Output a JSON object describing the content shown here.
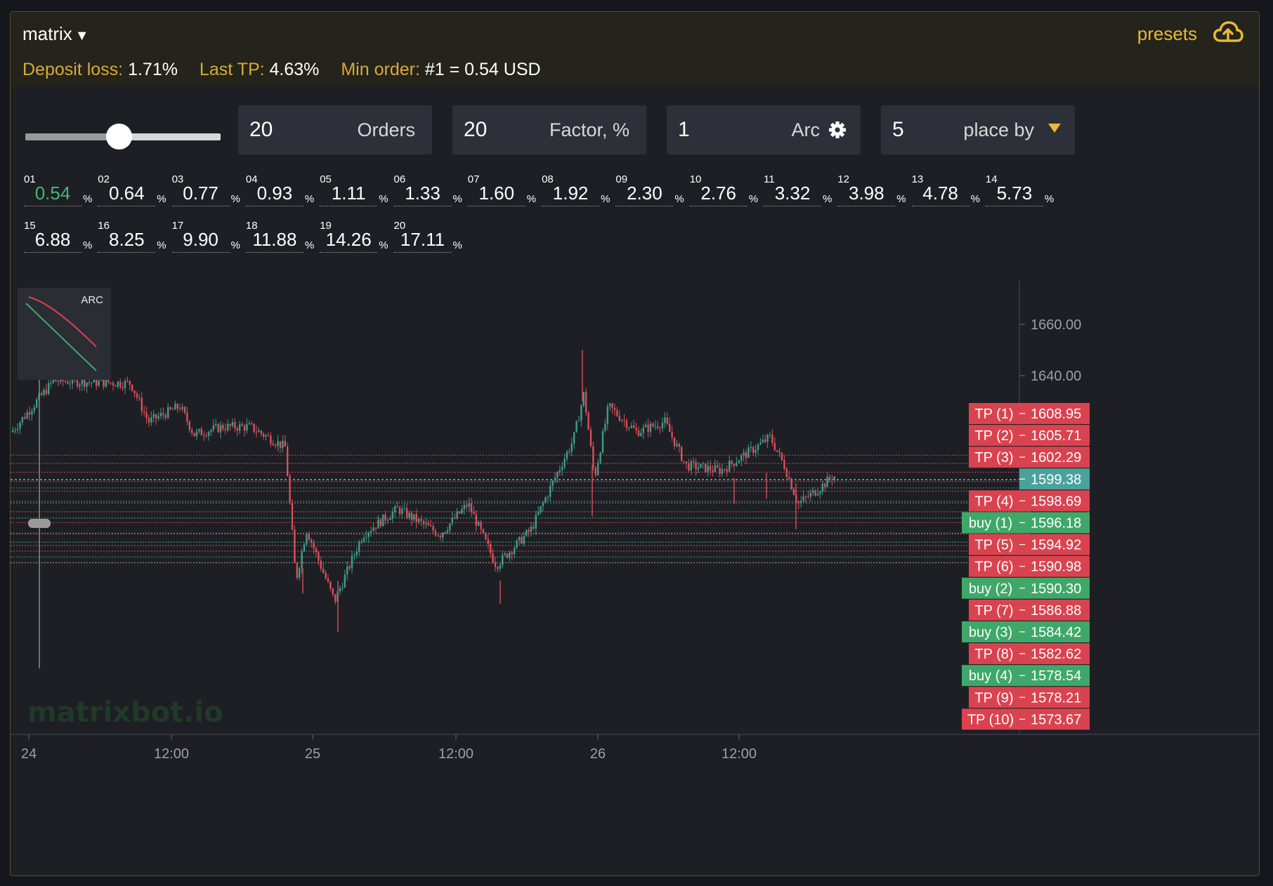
{
  "header": {
    "title": "matrix",
    "presets_label": "presets"
  },
  "stats": {
    "deposit_loss_label": "Deposit loss:",
    "deposit_loss_value": "1.71%",
    "last_tp_label": "Last TP:",
    "last_tp_value": "4.63%",
    "min_order_label": "Min order:",
    "min_order_value": "#1 = 0.54 USD"
  },
  "controls": {
    "slider_fraction": 0.48,
    "orders": {
      "value": "20",
      "label": "Orders"
    },
    "factor": {
      "value": "20",
      "label": "Factor, %"
    },
    "arc": {
      "value": "1",
      "label": "Arc"
    },
    "place_by": {
      "value": "5",
      "label": "place by"
    }
  },
  "unit": "%",
  "percentages": [
    {
      "n": "01",
      "v": "0.54"
    },
    {
      "n": "02",
      "v": "0.64"
    },
    {
      "n": "03",
      "v": "0.77"
    },
    {
      "n": "04",
      "v": "0.93"
    },
    {
      "n": "05",
      "v": "1.11"
    },
    {
      "n": "06",
      "v": "1.33"
    },
    {
      "n": "07",
      "v": "1.60"
    },
    {
      "n": "08",
      "v": "1.92"
    },
    {
      "n": "09",
      "v": "2.30"
    },
    {
      "n": "10",
      "v": "2.76"
    },
    {
      "n": "11",
      "v": "3.32"
    },
    {
      "n": "12",
      "v": "3.98"
    },
    {
      "n": "13",
      "v": "4.78"
    },
    {
      "n": "14",
      "v": "5.73"
    },
    {
      "n": "15",
      "v": "6.88"
    },
    {
      "n": "16",
      "v": "8.25"
    },
    {
      "n": "17",
      "v": "9.90"
    },
    {
      "n": "18",
      "v": "11.88"
    },
    {
      "n": "19",
      "v": "14.26"
    },
    {
      "n": "20",
      "v": "17.11"
    }
  ],
  "arc_preview": {
    "label": "ARC"
  },
  "chart": {
    "watermark": "matrixbot.io",
    "current_price": "1599.38",
    "y_ticks": [
      "1660.00",
      "1640.00"
    ],
    "x_ticks": [
      "24",
      "12:00",
      "25",
      "12:00",
      "26",
      "12:00"
    ],
    "levels": [
      {
        "label": "TP (1)",
        "price": "1608.95",
        "kind": "tp"
      },
      {
        "label": "TP (2)",
        "price": "1605.71",
        "kind": "tp"
      },
      {
        "label": "TP (3)",
        "price": "1602.29",
        "kind": "tp"
      },
      {
        "label": "TP (4)",
        "price": "1598.69",
        "kind": "tp"
      },
      {
        "label": "buy (1)",
        "price": "1596.18",
        "kind": "buy"
      },
      {
        "label": "TP (5)",
        "price": "1594.92",
        "kind": "tp"
      },
      {
        "label": "TP (6)",
        "price": "1590.98",
        "kind": "tp"
      },
      {
        "label": "buy (2)",
        "price": "1590.30",
        "kind": "buy"
      },
      {
        "label": "TP (7)",
        "price": "1586.88",
        "kind": "tp"
      },
      {
        "label": "buy (3)",
        "price": "1584.42",
        "kind": "buy"
      },
      {
        "label": "TP (8)",
        "price": "1582.62",
        "kind": "tp"
      },
      {
        "label": "buy (4)",
        "price": "1578.54",
        "kind": "buy"
      },
      {
        "label": "TP (9)",
        "price": "1578.21",
        "kind": "tp"
      },
      {
        "label": "TP (10)",
        "price": "1573.67",
        "kind": "tp"
      }
    ],
    "colors": {
      "tp": "#d9434f",
      "buy": "#3fa869",
      "current": "#4aa39a",
      "up": "#3f9d8a",
      "down": "#d9505a"
    }
  }
}
